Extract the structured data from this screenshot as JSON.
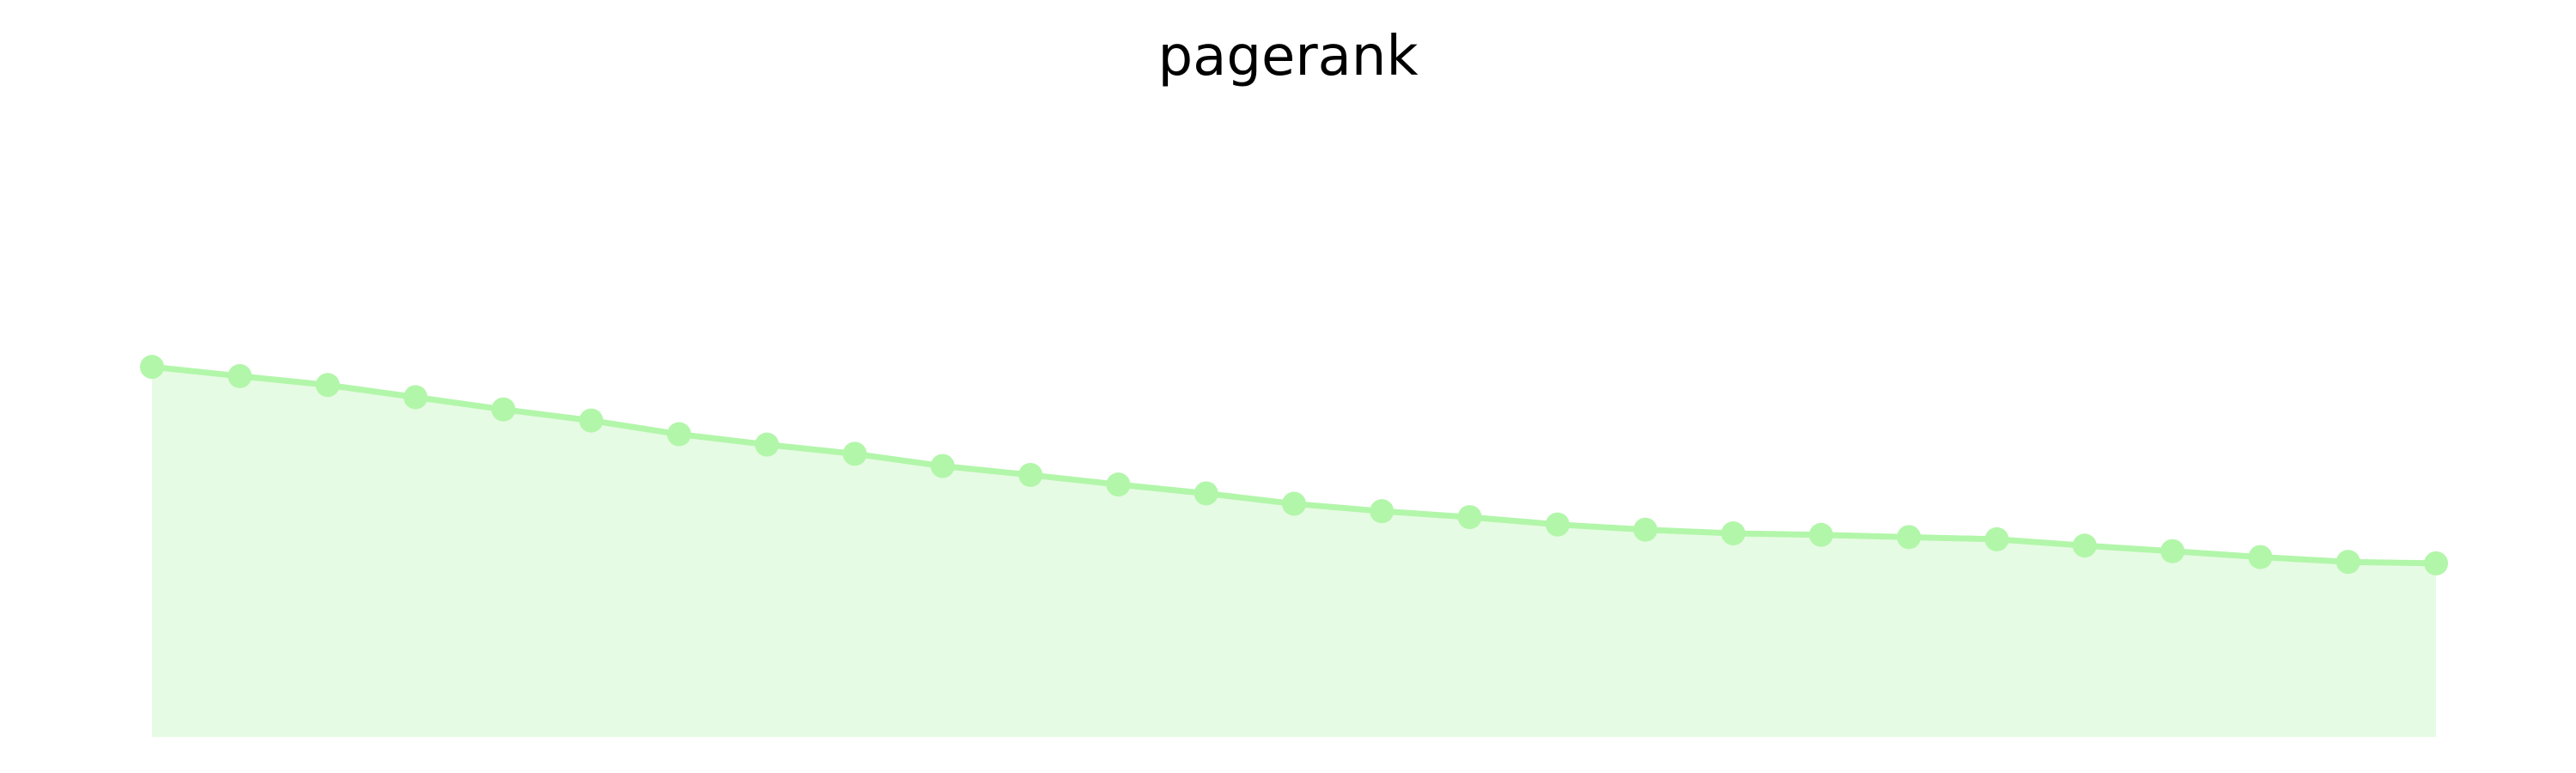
{
  "chart_data": {
    "type": "area",
    "title": "pagerank",
    "xlabel": "",
    "ylabel": "",
    "x": [
      0,
      1,
      2,
      3,
      4,
      5,
      6,
      7,
      8,
      9,
      10,
      11,
      12,
      13,
      14,
      15,
      16,
      17,
      18,
      19,
      20,
      21,
      22,
      23,
      24,
      25,
      26
    ],
    "series": [
      {
        "values": [
          1.0,
          0.975,
          0.951,
          0.918,
          0.885,
          0.855,
          0.818,
          0.79,
          0.765,
          0.732,
          0.708,
          0.682,
          0.658,
          0.63,
          0.61,
          0.594,
          0.574,
          0.56,
          0.55,
          0.546,
          0.54,
          0.534,
          0.517,
          0.502,
          0.486,
          0.473,
          0.469
        ]
      }
    ],
    "xlim": [
      0,
      26
    ],
    "ylim": [
      0,
      1.75
    ],
    "grid": false,
    "axes_visible": false,
    "colors": {
      "line": "#b2f6aa",
      "marker": "#b2f6aa",
      "fill": "#e6fbe3"
    }
  }
}
